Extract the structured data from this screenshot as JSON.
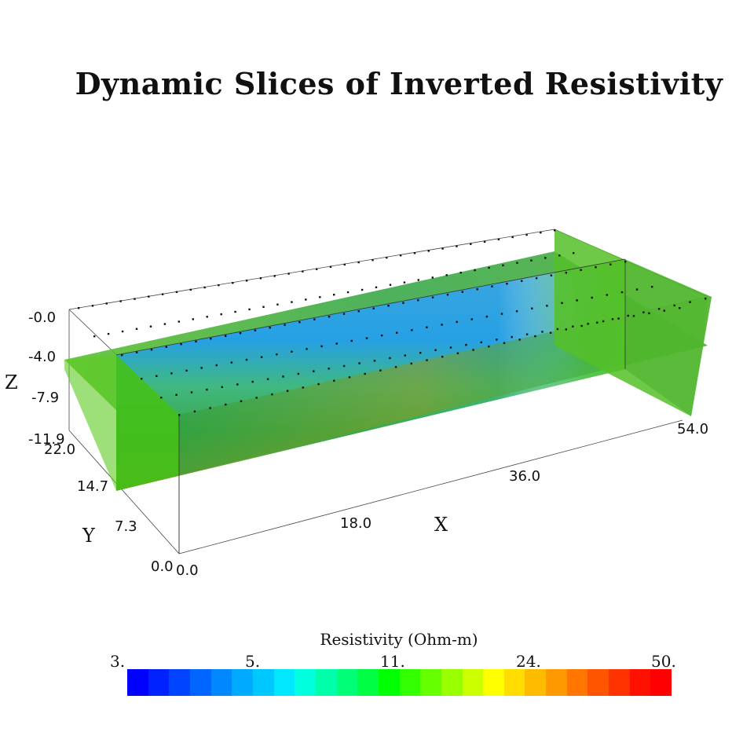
{
  "title": "Dynamic Slices of Inverted Resistivity",
  "axes": {
    "x": {
      "name": "X",
      "ticks": [
        "0.0",
        "18.0",
        "36.0",
        "54.0"
      ]
    },
    "y": {
      "name": "Y",
      "ticks": [
        "0.0",
        "7.3",
        "14.7",
        "22.0"
      ]
    },
    "z": {
      "name": "Z",
      "ticks": [
        "-0.0",
        "-4.0",
        "-7.9",
        "-11.9"
      ]
    }
  },
  "colorbar": {
    "title": "Resistivity (Ohm-m)",
    "ticks": [
      "3.",
      "5.",
      "11.",
      "24.",
      "50."
    ],
    "colors": [
      "#0000ff",
      "#0022ff",
      "#0044ff",
      "#0066ff",
      "#0088ff",
      "#00aaff",
      "#00c8ff",
      "#00e8ff",
      "#00ffdd",
      "#00ffaa",
      "#00ff77",
      "#00ff44",
      "#00ff00",
      "#33ff00",
      "#66ff00",
      "#99ff00",
      "#ccff00",
      "#ffff00",
      "#ffdd00",
      "#ffbb00",
      "#ff9900",
      "#ff7700",
      "#ff5500",
      "#ff3300",
      "#ff1100",
      "#ff0000"
    ]
  },
  "slice_colors": {
    "side_face": "#55cc22",
    "section_shallow": "#2aa8e8",
    "section_deep": "#3ab04a",
    "section_bottom": "#8aa020",
    "horizontal": "#66bb33",
    "hot_edge": "#cc4400"
  }
}
